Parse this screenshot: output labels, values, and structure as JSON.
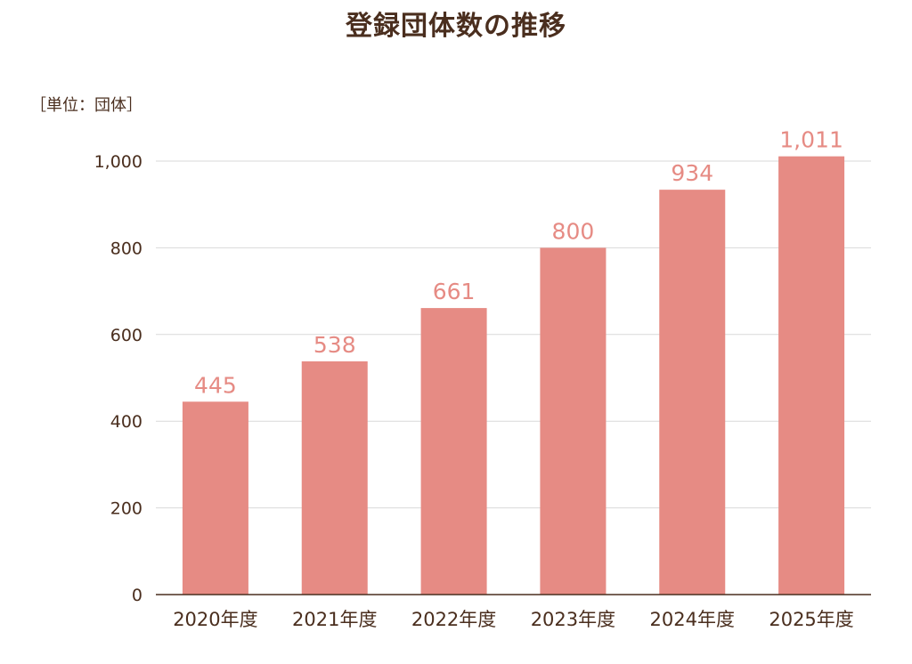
{
  "chart_data": {
    "type": "bar",
    "title": "登録団体数の推移",
    "unit_label": "［単位：団体］",
    "categories": [
      "2020年度",
      "2021年度",
      "2022年度",
      "2023年度",
      "2024年度",
      "2025年度"
    ],
    "values": [
      445,
      538,
      661,
      800,
      934,
      1011
    ],
    "value_labels": [
      "445",
      "538",
      "661",
      "800",
      "934",
      "1,011"
    ],
    "y_ticks": [
      0,
      200,
      400,
      600,
      800,
      1000
    ],
    "y_tick_labels": [
      "0",
      "200",
      "400",
      "600",
      "800",
      "1,000"
    ],
    "ylim": [
      0,
      1000
    ],
    "grid": true,
    "legend": "none"
  },
  "colors": {
    "bar": "#e68b84",
    "value_label": "#e68b84",
    "text": "#4a2e1e",
    "grid": "#d9d9d9",
    "axis": "#4a2e1e"
  }
}
